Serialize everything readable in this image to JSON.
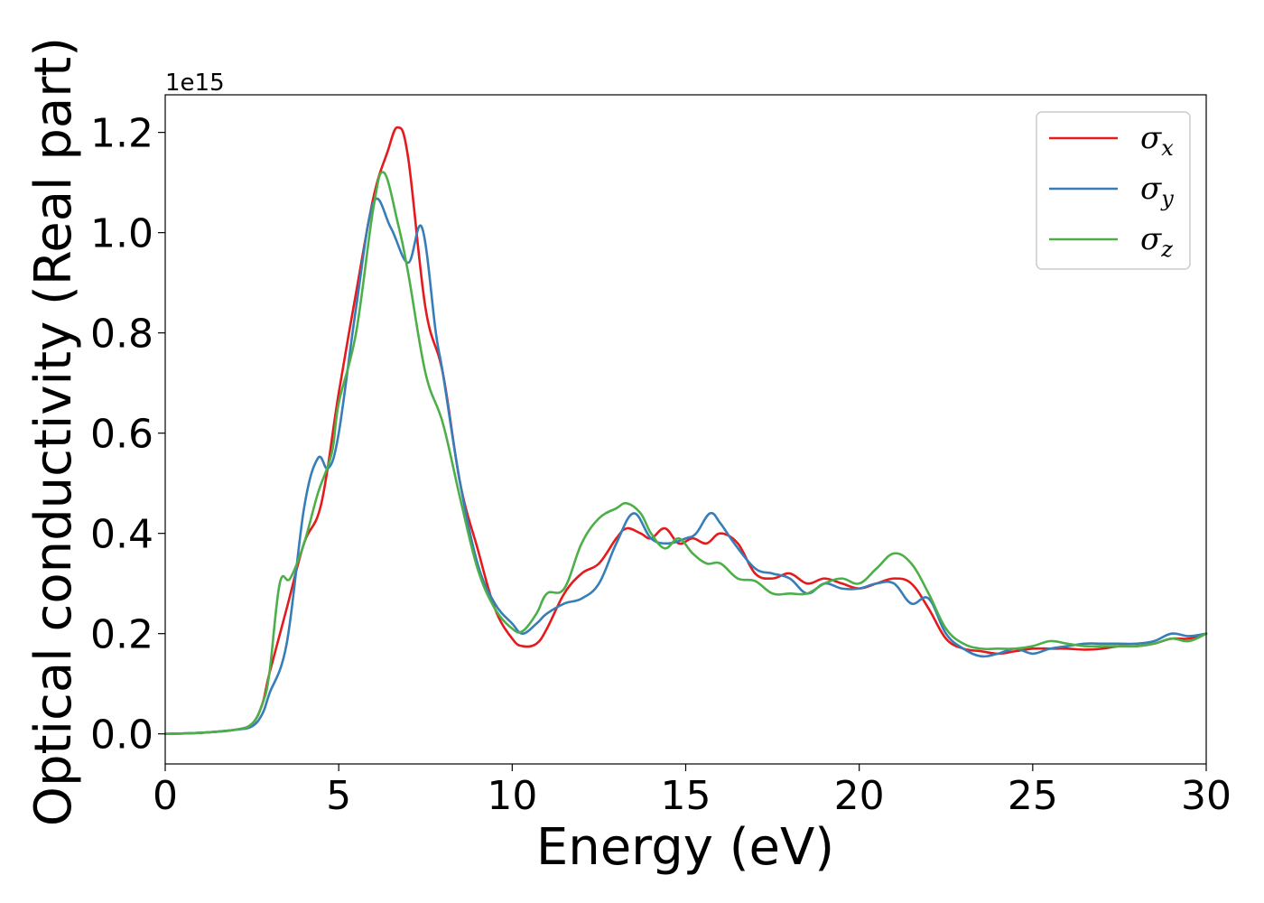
{
  "chart_data": {
    "type": "line",
    "title": "",
    "xlabel": "Energy (eV)",
    "ylabel": "Optical conductivity (Real part)",
    "y_offset_label": "1e15",
    "xlim": [
      0,
      30
    ],
    "ylim": [
      -0.06,
      1.275
    ],
    "y_scale": 1000000000000000.0,
    "x_ticks": [
      0,
      5,
      10,
      15,
      20,
      25,
      30
    ],
    "x_tick_labels": [
      "0",
      "5",
      "10",
      "15",
      "20",
      "25",
      "30"
    ],
    "y_ticks": [
      0.0,
      0.2,
      0.4,
      0.6,
      0.8,
      1.0,
      1.2
    ],
    "y_tick_labels": [
      "0.0",
      "0.2",
      "0.4",
      "0.6",
      "0.8",
      "1.0",
      "1.2"
    ],
    "grid": false,
    "legend_position": "top-right",
    "series": [
      {
        "name": "σx",
        "symbol": "σ",
        "subscript": "x",
        "color": "#e41a1c",
        "x": [
          0,
          1,
          2,
          2.5,
          2.8,
          3.0,
          3.5,
          4.0,
          4.5,
          5.0,
          5.5,
          6.0,
          6.4,
          6.7,
          7.0,
          7.5,
          8.0,
          8.5,
          9.0,
          9.5,
          10.0,
          10.3,
          10.7,
          11.0,
          11.5,
          12.0,
          12.5,
          13.0,
          13.3,
          13.7,
          14.0,
          14.4,
          14.8,
          15.2,
          15.6,
          16.0,
          16.5,
          17.0,
          17.5,
          18.0,
          18.5,
          19.0,
          19.5,
          20.0,
          20.5,
          21.0,
          21.5,
          22.0,
          22.5,
          23.0,
          23.5,
          24.0,
          24.5,
          25.0,
          25.5,
          26.0,
          26.5,
          27.0,
          27.5,
          28.0,
          28.5,
          29.0,
          29.5,
          30.0
        ],
        "y": [
          0.0,
          0.002,
          0.008,
          0.02,
          0.06,
          0.12,
          0.25,
          0.38,
          0.46,
          0.68,
          0.88,
          1.07,
          1.16,
          1.21,
          1.15,
          0.85,
          0.72,
          0.5,
          0.37,
          0.25,
          0.19,
          0.175,
          0.18,
          0.21,
          0.28,
          0.32,
          0.34,
          0.39,
          0.41,
          0.4,
          0.39,
          0.41,
          0.38,
          0.39,
          0.38,
          0.4,
          0.38,
          0.32,
          0.31,
          0.32,
          0.3,
          0.31,
          0.3,
          0.29,
          0.3,
          0.31,
          0.3,
          0.25,
          0.19,
          0.17,
          0.165,
          0.16,
          0.165,
          0.17,
          0.17,
          0.17,
          0.168,
          0.17,
          0.175,
          0.175,
          0.18,
          0.19,
          0.19,
          0.2
        ]
      },
      {
        "name": "σy",
        "symbol": "σ",
        "subscript": "y",
        "color": "#377eb8",
        "x": [
          0,
          1,
          2,
          2.5,
          2.8,
          3.0,
          3.5,
          4.0,
          4.4,
          4.7,
          5.0,
          5.5,
          6.0,
          6.5,
          7.0,
          7.4,
          7.8,
          8.0,
          8.5,
          9.0,
          9.5,
          10.0,
          10.3,
          10.7,
          11.0,
          11.5,
          12.0,
          12.5,
          13.0,
          13.5,
          14.0,
          14.5,
          15.0,
          15.3,
          15.7,
          16.0,
          16.4,
          17.0,
          17.5,
          18.0,
          18.5,
          19.0,
          19.5,
          20.0,
          20.5,
          21.0,
          21.5,
          22.0,
          22.5,
          23.0,
          23.5,
          24.0,
          24.5,
          25.0,
          25.5,
          26.0,
          26.5,
          27.0,
          27.5,
          28.0,
          28.5,
          29.0,
          29.5,
          30.0
        ],
        "y": [
          0.0,
          0.002,
          0.008,
          0.015,
          0.04,
          0.08,
          0.18,
          0.45,
          0.55,
          0.53,
          0.6,
          0.85,
          1.06,
          1.01,
          0.94,
          1.01,
          0.8,
          0.72,
          0.5,
          0.34,
          0.26,
          0.22,
          0.2,
          0.22,
          0.24,
          0.26,
          0.27,
          0.3,
          0.38,
          0.44,
          0.39,
          0.38,
          0.39,
          0.4,
          0.44,
          0.42,
          0.38,
          0.33,
          0.32,
          0.31,
          0.28,
          0.3,
          0.29,
          0.29,
          0.3,
          0.3,
          0.26,
          0.27,
          0.2,
          0.17,
          0.155,
          0.16,
          0.17,
          0.16,
          0.17,
          0.175,
          0.18,
          0.18,
          0.18,
          0.18,
          0.185,
          0.2,
          0.195,
          0.2
        ]
      },
      {
        "name": "σz",
        "symbol": "σ",
        "subscript": "z",
        "color": "#4daf4a",
        "x": [
          0,
          1,
          2,
          2.5,
          2.8,
          3.0,
          3.3,
          3.6,
          4.0,
          4.4,
          4.8,
          5.0,
          5.5,
          6.0,
          6.3,
          6.7,
          7.0,
          7.5,
          8.0,
          8.5,
          9.0,
          9.5,
          10.0,
          10.3,
          10.7,
          11.0,
          11.5,
          12.0,
          12.5,
          13.0,
          13.3,
          13.7,
          14.0,
          14.4,
          14.8,
          15.2,
          15.6,
          16.0,
          16.5,
          17.0,
          17.5,
          18.0,
          18.5,
          19.0,
          19.5,
          20.0,
          20.5,
          21.0,
          21.5,
          22.0,
          22.5,
          23.0,
          23.5,
          24.0,
          24.5,
          25.0,
          25.5,
          26.0,
          26.5,
          27.0,
          27.5,
          28.0,
          28.5,
          29.0,
          29.5,
          30.0
        ],
        "y": [
          0.0,
          0.002,
          0.008,
          0.02,
          0.06,
          0.12,
          0.3,
          0.31,
          0.38,
          0.48,
          0.56,
          0.66,
          0.8,
          1.05,
          1.12,
          1.02,
          0.92,
          0.72,
          0.62,
          0.47,
          0.33,
          0.25,
          0.21,
          0.205,
          0.24,
          0.28,
          0.29,
          0.38,
          0.43,
          0.45,
          0.46,
          0.44,
          0.4,
          0.37,
          0.39,
          0.36,
          0.34,
          0.34,
          0.31,
          0.305,
          0.28,
          0.28,
          0.28,
          0.3,
          0.31,
          0.3,
          0.33,
          0.36,
          0.34,
          0.28,
          0.21,
          0.18,
          0.17,
          0.17,
          0.17,
          0.175,
          0.185,
          0.18,
          0.175,
          0.175,
          0.175,
          0.175,
          0.18,
          0.19,
          0.185,
          0.2
        ]
      }
    ]
  }
}
